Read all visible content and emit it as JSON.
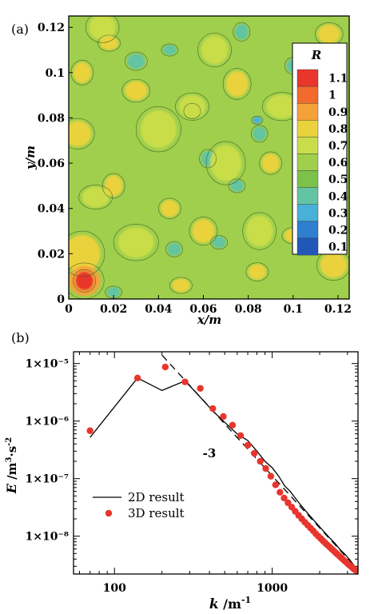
{
  "chart_data": [
    {
      "panel_label": "(a)",
      "type": "heatmap",
      "xlabel": "x/m",
      "ylabel": "y/m",
      "xlim": [
        0,
        0.125
      ],
      "ylim": [
        0,
        0.125
      ],
      "x_ticks": [
        "0",
        "0.02",
        "0.04",
        "0.06",
        "0.08",
        "0.1",
        "0.12"
      ],
      "x_tick_values": [
        0,
        0.02,
        0.04,
        0.06,
        0.08,
        0.1,
        0.12
      ],
      "y_ticks": [
        "0",
        "0.02",
        "0.04",
        "0.06",
        "0.08",
        "0.1",
        "0.12"
      ],
      "y_tick_values": [
        0,
        0.02,
        0.04,
        0.06,
        0.08,
        0.1,
        0.12
      ],
      "colorbar": {
        "title": "R",
        "levels": [
          "1.1",
          "1",
          "0.9",
          "0.8",
          "0.7",
          "0.6",
          "0.5",
          "0.4",
          "0.3",
          "0.2",
          "0.1"
        ],
        "colors": [
          "#e8362c",
          "#f26a2e",
          "#f5a13a",
          "#ead23c",
          "#c9dd4a",
          "#9fcf4c",
          "#7cc149",
          "#62c4a3",
          "#49b0d8",
          "#2f7fd0",
          "#2158b8"
        ]
      },
      "dominant_value": 0.6,
      "patches": [
        {
          "x": 0.007,
          "y": 0.008,
          "r": 0.004,
          "level": 1.1
        },
        {
          "x": 0.007,
          "y": 0.008,
          "r": 0.007,
          "level": 0.9
        },
        {
          "x": 0.004,
          "y": 0.073,
          "r": 0.006,
          "level": 0.8
        },
        {
          "x": 0.006,
          "y": 0.02,
          "r": 0.008,
          "level": 0.8
        },
        {
          "x": 0.006,
          "y": 0.1,
          "r": 0.004,
          "level": 0.8
        },
        {
          "x": 0.018,
          "y": 0.113,
          "r": 0.004,
          "level": 0.8
        },
        {
          "x": 0.03,
          "y": 0.092,
          "r": 0.005,
          "level": 0.8
        },
        {
          "x": 0.045,
          "y": 0.04,
          "r": 0.004,
          "level": 0.8
        },
        {
          "x": 0.06,
          "y": 0.03,
          "r": 0.005,
          "level": 0.8
        },
        {
          "x": 0.075,
          "y": 0.095,
          "r": 0.005,
          "level": 0.8
        },
        {
          "x": 0.1,
          "y": 0.028,
          "r": 0.004,
          "level": 0.8
        },
        {
          "x": 0.116,
          "y": 0.117,
          "r": 0.005,
          "level": 0.8
        },
        {
          "x": 0.118,
          "y": 0.015,
          "r": 0.006,
          "level": 0.8
        },
        {
          "x": 0.09,
          "y": 0.06,
          "r": 0.004,
          "level": 0.8
        },
        {
          "x": 0.02,
          "y": 0.05,
          "r": 0.004,
          "level": 0.8
        },
        {
          "x": 0.05,
          "y": 0.006,
          "r": 0.004,
          "level": 0.8
        },
        {
          "x": 0.084,
          "y": 0.012,
          "r": 0.004,
          "level": 0.8
        },
        {
          "x": 0.015,
          "y": 0.12,
          "r": 0.006,
          "level": 0.7
        },
        {
          "x": 0.04,
          "y": 0.075,
          "r": 0.008,
          "level": 0.7
        },
        {
          "x": 0.07,
          "y": 0.06,
          "r": 0.007,
          "level": 0.7
        },
        {
          "x": 0.095,
          "y": 0.085,
          "r": 0.007,
          "level": 0.7
        },
        {
          "x": 0.03,
          "y": 0.025,
          "r": 0.008,
          "level": 0.7
        },
        {
          "x": 0.11,
          "y": 0.045,
          "r": 0.006,
          "level": 0.7
        },
        {
          "x": 0.065,
          "y": 0.11,
          "r": 0.006,
          "level": 0.7
        },
        {
          "x": 0.085,
          "y": 0.03,
          "r": 0.006,
          "level": 0.7
        },
        {
          "x": 0.012,
          "y": 0.045,
          "r": 0.006,
          "level": 0.7
        },
        {
          "x": 0.055,
          "y": 0.085,
          "r": 0.006,
          "level": 0.7
        },
        {
          "x": 0.03,
          "y": 0.105,
          "r": 0.004,
          "level": 0.4
        },
        {
          "x": 0.055,
          "y": 0.083,
          "r": 0.003,
          "level": 0.4
        },
        {
          "x": 0.085,
          "y": 0.073,
          "r": 0.003,
          "level": 0.4
        },
        {
          "x": 0.062,
          "y": 0.062,
          "r": 0.003,
          "level": 0.4
        },
        {
          "x": 0.045,
          "y": 0.11,
          "r": 0.003,
          "level": 0.4
        },
        {
          "x": 0.067,
          "y": 0.025,
          "r": 0.003,
          "level": 0.4
        },
        {
          "x": 0.047,
          "y": 0.022,
          "r": 0.003,
          "level": 0.4
        },
        {
          "x": 0.1,
          "y": 0.103,
          "r": 0.003,
          "level": 0.4
        },
        {
          "x": 0.077,
          "y": 0.118,
          "r": 0.003,
          "level": 0.4
        },
        {
          "x": 0.02,
          "y": 0.003,
          "r": 0.003,
          "level": 0.4
        },
        {
          "x": 0.075,
          "y": 0.05,
          "r": 0.003,
          "level": 0.4
        },
        {
          "x": 0.084,
          "y": 0.079,
          "r": 0.002,
          "level": 0.3
        }
      ]
    },
    {
      "panel_label": "(b)",
      "type": "line",
      "xlabel": "k /m⁻¹",
      "ylabel": "E /m³·s⁻²",
      "xscale": "log",
      "yscale": "log",
      "xlim": [
        55,
        3500
      ],
      "ylim": [
        2.2e-09,
        1.6e-05
      ],
      "x_ticks": [
        "100",
        "1000"
      ],
      "x_tick_values": [
        100,
        1000
      ],
      "y_ticks": [
        "1×10⁻⁵",
        "1×10⁻⁶",
        "1×10⁻⁷",
        "1×10⁻⁸"
      ],
      "y_tick_values": [
        1e-05,
        1e-06,
        1e-07,
        1e-08
      ],
      "annotation": "-3",
      "legend_position": "lower-left",
      "series": [
        {
          "name": "2D result",
          "style": "solid-line",
          "color": "#000000",
          "x": [
            70,
            140,
            200,
            280,
            350,
            420,
            500,
            600,
            700,
            800,
            900,
            1000,
            1100,
            1200,
            1300,
            1400,
            1500,
            1700,
            1900,
            2100,
            2300,
            2500,
            2700,
            2900,
            3100,
            3300,
            3500
          ],
          "y": [
            5.2e-07,
            5.6e-06,
            3.4e-06,
            5e-06,
            2.6e-06,
            1.5e-06,
            9.5e-07,
            6e-07,
            4.6e-07,
            3e-07,
            2e-07,
            1.55e-07,
            1.1e-07,
            7.5e-08,
            6e-08,
            4.6e-08,
            3.6e-08,
            2.4e-08,
            1.7e-08,
            1.25e-08,
            9.5e-09,
            7.5e-09,
            5.8e-09,
            4.8e-09,
            3.9e-09,
            3.1e-09,
            2.6e-09
          ]
        },
        {
          "name": "3D result",
          "style": "dots",
          "color": "#e8352d",
          "x": [
            70,
            140,
            210,
            280,
            350,
            420,
            490,
            560,
            630,
            700,
            770,
            840,
            910,
            980,
            1050,
            1120,
            1190,
            1260,
            1330,
            1400,
            1470,
            1540,
            1610,
            1680,
            1750,
            1820,
            1890,
            1960,
            2030,
            2100,
            2170,
            2240,
            2310,
            2380,
            2450,
            2520,
            2590,
            2660,
            2730,
            2800,
            2870,
            2940,
            3010,
            3080,
            3150,
            3220,
            3290,
            3360,
            3430,
            3500
          ],
          "y": [
            6.8e-07,
            5.6e-06,
            8.7e-06,
            4.8e-06,
            3.7e-06,
            1.65e-06,
            1.2e-06,
            8.5e-07,
            5.6e-07,
            3.8e-07,
            2.75e-07,
            2e-07,
            1.5e-07,
            1.1e-07,
            7.8e-08,
            5.8e-08,
            4.6e-08,
            3.8e-08,
            3.2e-08,
            2.7e-08,
            2.3e-08,
            2e-08,
            1.75e-08,
            1.55e-08,
            1.38e-08,
            1.24e-08,
            1.1e-08,
            1e-08,
            9.1e-09,
            8.3e-09,
            7.6e-09,
            7e-09,
            6.5e-09,
            6e-09,
            5.6e-09,
            5.2e-09,
            4.85e-09,
            4.55e-09,
            4.25e-09,
            4e-09,
            3.75e-09,
            3.55e-09,
            3.35e-09,
            3.15e-09,
            3e-09,
            2.85e-09,
            2.7e-09,
            2.6e-09,
            2.5e-09,
            2.4e-09
          ]
        },
        {
          "style": "dashed-line",
          "color": "#000000",
          "slope": -3,
          "x": [
            200,
            3500
          ],
          "y": [
            1.4e-05,
            2.6e-09
          ]
        }
      ]
    }
  ]
}
